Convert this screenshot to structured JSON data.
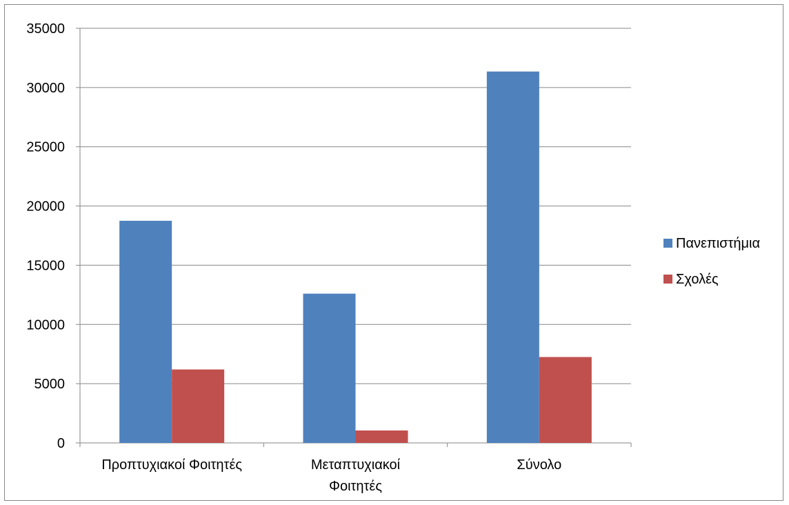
{
  "chart_data": {
    "type": "bar",
    "title": "",
    "xlabel": "",
    "ylabel": "",
    "categories": [
      [
        "Προπτυχιακοί Φοιτητές"
      ],
      [
        "Μεταπτυχιακοί",
        "Φοιτητές"
      ],
      [
        "Σύνολο"
      ]
    ],
    "series": [
      {
        "name": "Πανεπιστήμια",
        "color": "#4F81BD",
        "values": [
          18750,
          12600,
          31350
        ]
      },
      {
        "name": "Σχολές",
        "color": "#C0504D",
        "values": [
          6200,
          1050,
          7250
        ]
      }
    ],
    "ylim": [
      0,
      35000
    ],
    "yticks": [
      0,
      5000,
      10000,
      15000,
      20000,
      25000,
      30000,
      35000
    ],
    "grid": true,
    "legend_position": "right"
  }
}
